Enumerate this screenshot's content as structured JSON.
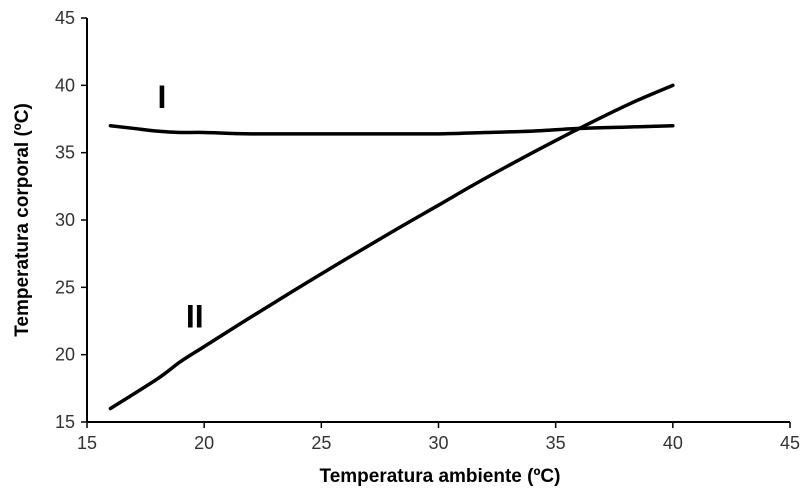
{
  "chart_data": {
    "type": "line",
    "xlabel": "Temperatura ambiente (ºC)",
    "ylabel": "Temperatura corporal (ºC)",
    "xlim": [
      15,
      45
    ],
    "ylim": [
      15,
      45
    ],
    "x_ticks": [
      15,
      20,
      25,
      30,
      35,
      40,
      45
    ],
    "y_ticks": [
      15,
      20,
      25,
      30,
      35,
      40,
      45
    ],
    "grid": false,
    "legend": "none",
    "series": [
      {
        "name": "I",
        "x": [
          16,
          17,
          18,
          19,
          20,
          22,
          25,
          28,
          30,
          32,
          34,
          36,
          38,
          40
        ],
        "y": [
          37,
          36.8,
          36.6,
          36.5,
          36.5,
          36.4,
          36.4,
          36.4,
          36.4,
          36.5,
          36.6,
          36.8,
          36.9,
          37
        ]
      },
      {
        "name": "II",
        "x": [
          16,
          18,
          19,
          20,
          22,
          25,
          28,
          30,
          32,
          35,
          38,
          40
        ],
        "y": [
          16,
          18.2,
          19.5,
          20.6,
          22.8,
          26,
          29.1,
          31.1,
          33.1,
          35.9,
          38.5,
          40
        ]
      }
    ]
  }
}
